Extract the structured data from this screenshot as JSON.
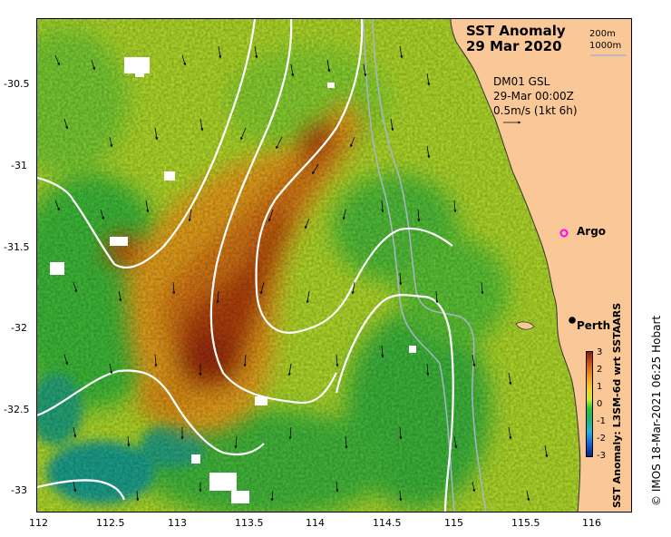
{
  "title": {
    "line1": "SST Anomaly",
    "line2": "29 Mar 2020"
  },
  "depth_legend": [
    "200m",
    "1000m"
  ],
  "model_info": [
    "DM01 GSL",
    "29-Mar 00:00Z",
    "0.5m/s (1kt 6h)"
  ],
  "places": {
    "argo": "Argo",
    "perth": "Perth"
  },
  "colorbar": {
    "title": "SST Anomaly: L3SM-6d wrt SSTAARS",
    "ticks": [
      "3",
      "2",
      "1",
      "0",
      "-1",
      "-2",
      "-3"
    ]
  },
  "credit": "© IMOS 18-Mar-2021 06:25 Hobart",
  "axes": {
    "x_ticks": [
      "112",
      "112.5",
      "113",
      "113.5",
      "114",
      "114.5",
      "115",
      "115.5",
      "116"
    ],
    "y_ticks": [
      "-30.5",
      "-31",
      "-31.5",
      "-32",
      "-32.5",
      "-33"
    ],
    "x_range": [
      112,
      116.2
    ],
    "y_range": [
      -33.2,
      -30.2
    ]
  },
  "colors": {
    "land": "#fac896",
    "warm_max": "#8a1a08",
    "warm": "#e08a18",
    "neutral": "#c9ec2a",
    "cool": "#31c531",
    "cold": "#20a8a0",
    "contour": "#ffffff",
    "depth_line": "#a9b4c9",
    "argo_marker": "#ff00ff"
  }
}
